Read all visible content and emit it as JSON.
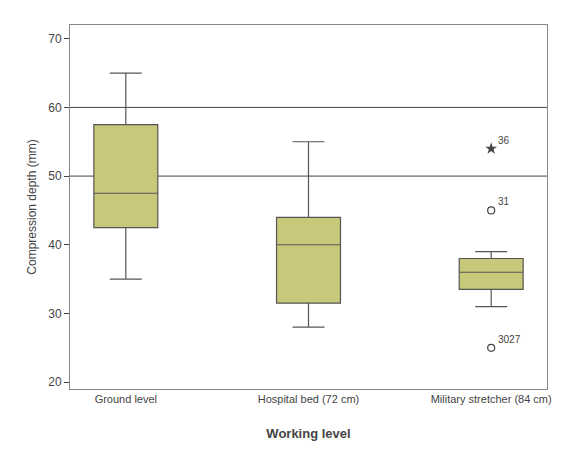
{
  "chart_data": {
    "type": "box",
    "categories": [
      "Ground level",
      "Hospital bed (72 cm)",
      "Military stretcher (84 cm)"
    ],
    "boxes": [
      {
        "median": 47.5,
        "q1": 42.5,
        "q3": 57.5,
        "whisker_low": 35,
        "whisker_high": 65,
        "outliers": [],
        "stars": []
      },
      {
        "median": 40,
        "q1": 31.5,
        "q3": 44,
        "whisker_low": 28,
        "whisker_high": 55,
        "outliers": [],
        "stars": []
      },
      {
        "median": 36,
        "q1": 33.5,
        "q3": 38,
        "whisker_low": 31,
        "whisker_high": 39,
        "outliers": [
          {
            "value": 45,
            "label": "31"
          },
          {
            "value": 25,
            "label": "3027"
          }
        ],
        "stars": [
          {
            "value": 54,
            "label": "36"
          }
        ]
      }
    ],
    "hlines": [
      50,
      60
    ],
    "xlabel": "Working level",
    "ylabel": "Compression depth (mm)",
    "ylim": [
      19,
      72
    ],
    "yticks": [
      20,
      30,
      40,
      50,
      60,
      70
    ],
    "color": "#c8c87a",
    "grid": false
  }
}
